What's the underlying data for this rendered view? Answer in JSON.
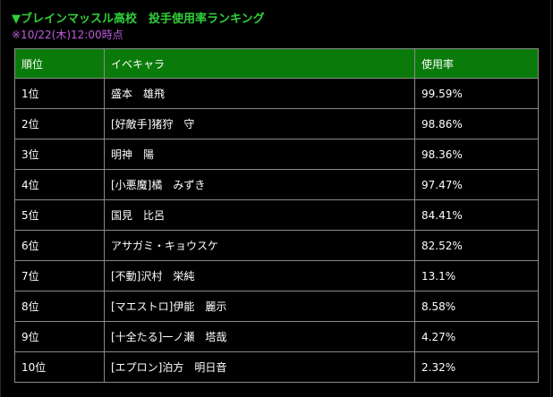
{
  "header": {
    "title": "▼ブレインマッスル高校　投手使用率ランキング",
    "timestamp": "※10/22(木)12:00時点"
  },
  "colors": {
    "title": "#2fd13a",
    "timestamp": "#c15ce0",
    "header_bg": "#0a7b0a",
    "background": "#000000"
  },
  "table": {
    "columns": [
      "順位",
      "イベキャラ",
      "使用率"
    ],
    "rows": [
      {
        "rank": "1位",
        "name": "盛本　雄飛",
        "rate": "99.59%"
      },
      {
        "rank": "2位",
        "name": "[好敵手]猪狩　守",
        "rate": "98.86%"
      },
      {
        "rank": "3位",
        "name": "明神　陽",
        "rate": "98.36%"
      },
      {
        "rank": "4位",
        "name": "[小悪魔]橘　みずき",
        "rate": "97.47%"
      },
      {
        "rank": "5位",
        "name": "国見　比呂",
        "rate": "84.41%"
      },
      {
        "rank": "6位",
        "name": "アサガミ・キョウスケ",
        "rate": "82.52%"
      },
      {
        "rank": "7位",
        "name": "[不動]沢村　栄純",
        "rate": "13.1%"
      },
      {
        "rank": "8位",
        "name": "[マエストロ]伊能　麗示",
        "rate": "8.58%"
      },
      {
        "rank": "9位",
        "name": "[十全たる]一ノ瀬　塔哉",
        "rate": "4.27%"
      },
      {
        "rank": "10位",
        "name": "[エプロン]泊方　明日音",
        "rate": "2.32%"
      }
    ]
  }
}
